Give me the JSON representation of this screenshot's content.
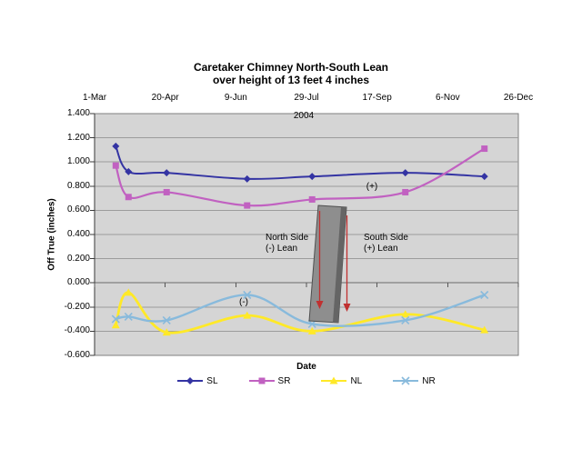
{
  "chart_data": {
    "type": "line",
    "smoothed": true,
    "title_line1": "Caretaker Chimney North-South Lean",
    "title_line2": "over height of 13 feet 4 inches",
    "inner_year_label": "2004",
    "xlabel": "Date",
    "ylabel": "Off True (inches)",
    "x_tick_labels": [
      "1-Mar",
      "20-Apr",
      "9-Jun",
      "29-Jul",
      "17-Sep",
      "6-Nov",
      "26-Dec"
    ],
    "x_tick_days": [
      0,
      50,
      100,
      150,
      200,
      250,
      300
    ],
    "y_tick_labels": [
      "1.400",
      "1.200",
      "1.000",
      "0.800",
      "0.600",
      "0.400",
      "0.200",
      "0.000",
      "-0.200",
      "-0.400",
      "-0.600"
    ],
    "ylim": [
      -0.6,
      1.4
    ],
    "y_step": 0.2,
    "grid": true,
    "legend_position": "bottom",
    "plot_bg_color": "#D5D5D5",
    "gridline_color": "#9C9C9C",
    "points_x_days": [
      15,
      24,
      51,
      108,
      154,
      220,
      276
    ],
    "points_dates_approx": [
      "16-Mar",
      "25-Mar",
      "21-Apr",
      "17-Jun",
      "2-Aug",
      "7-Oct",
      "2-Dec"
    ],
    "series": [
      {
        "name": "SL",
        "marker": "diamond",
        "color": "#3434A3",
        "values": [
          1.13,
          0.92,
          0.91,
          0.86,
          0.88,
          0.91,
          0.88
        ]
      },
      {
        "name": "SR",
        "marker": "square",
        "color": "#C161C1",
        "values": [
          0.97,
          0.71,
          0.75,
          0.64,
          0.69,
          0.75,
          1.11
        ]
      },
      {
        "name": "NL",
        "marker": "triangle",
        "color": "#FFE928",
        "values": [
          -0.35,
          -0.08,
          -0.41,
          -0.27,
          -0.4,
          -0.26,
          -0.39
        ]
      },
      {
        "name": "NR",
        "marker": "x",
        "color": "#88BADC",
        "values": [
          -0.3,
          -0.28,
          -0.31,
          -0.1,
          -0.34,
          -0.31,
          -0.1
        ]
      }
    ],
    "annotations": {
      "plus_label": "(+)",
      "minus_label": "(-)",
      "north_label_line1": "North Side",
      "north_label_line2": "(-) Lean",
      "south_label_line1": "South Side",
      "south_label_line2": "(+) Lean"
    },
    "chimney_graphic": {
      "fill": "#8E8E8E",
      "shadow": "#656565",
      "outline": "#4F4F4F",
      "arrow_color": "#C03030"
    }
  }
}
